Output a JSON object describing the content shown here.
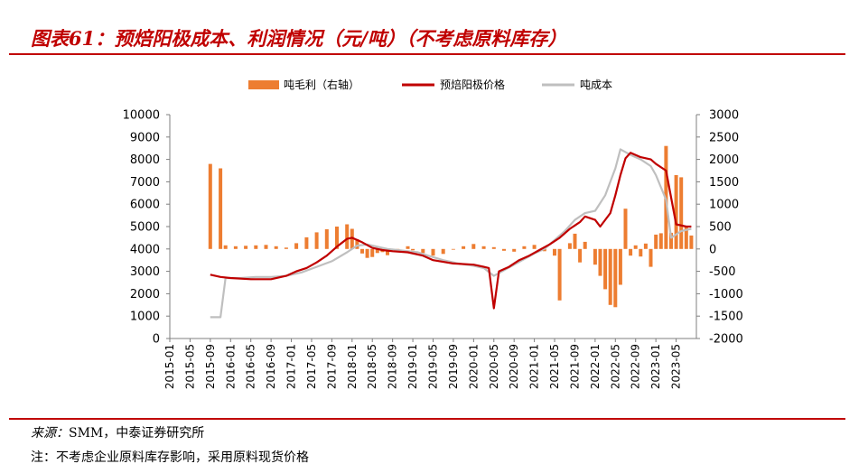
{
  "header": {
    "title": "图表61：预焙阳极成本、利润情况（元/吨）（不考虑原料库存）"
  },
  "footer": {
    "source_label": "来源：",
    "source_text": "SMM，中泰证券研究所",
    "note_label": "注：",
    "note_text": "不考虑企业原料库存影响，采用原料现货价格"
  },
  "chart_data": {
    "type": "line",
    "title": "",
    "xlabel": "",
    "ylabel": "",
    "legend_position": "top",
    "grid": false,
    "colors": {
      "profit": "#ed7d31",
      "price": "#c00000",
      "cost": "#bfbfbf"
    },
    "left_axis": {
      "min": 0,
      "max": 10000,
      "ticks": [
        0,
        1000,
        2000,
        3000,
        4000,
        5000,
        6000,
        7000,
        8000,
        9000,
        10000
      ]
    },
    "right_axis": {
      "min": -2000,
      "max": 3000,
      "ticks": [
        -2000,
        -1500,
        -1000,
        -500,
        0,
        500,
        1000,
        1500,
        2000,
        2500,
        3000
      ]
    },
    "x_ticks": [
      "2015-01",
      "2015-05",
      "2015-09",
      "2016-01",
      "2016-05",
      "2016-09",
      "2017-01",
      "2017-05",
      "2017-09",
      "2018-01",
      "2018-05",
      "2018-09",
      "2019-01",
      "2019-05",
      "2019-09",
      "2020-01",
      "2020-05",
      "2020-09",
      "2021-01",
      "2021-05",
      "2021-09",
      "2022-01",
      "2022-05",
      "2022-09",
      "2023-01",
      "2023-05"
    ],
    "series": [
      {
        "name": "吨毛利（右轴）",
        "axis": "right",
        "kind": "bar",
        "points": [
          [
            "2015-09",
            1900
          ],
          [
            "2015-11",
            1800
          ],
          [
            "2015-12",
            80
          ],
          [
            "2016-02",
            60
          ],
          [
            "2016-04",
            70
          ],
          [
            "2016-06",
            80
          ],
          [
            "2016-08",
            90
          ],
          [
            "2016-10",
            60
          ],
          [
            "2016-12",
            30
          ],
          [
            "2017-02",
            130
          ],
          [
            "2017-04",
            260
          ],
          [
            "2017-06",
            370
          ],
          [
            "2017-08",
            440
          ],
          [
            "2017-10",
            500
          ],
          [
            "2017-12",
            550
          ],
          [
            "2018-01",
            450
          ],
          [
            "2018-02",
            220
          ],
          [
            "2018-03",
            -100
          ],
          [
            "2018-04",
            -200
          ],
          [
            "2018-05",
            -180
          ],
          [
            "2018-06",
            -90
          ],
          [
            "2018-07",
            -70
          ],
          [
            "2018-08",
            -140
          ],
          [
            "2018-09",
            -60
          ],
          [
            "2018-10",
            0
          ],
          [
            "2018-12",
            60
          ],
          [
            "2019-01",
            -30
          ],
          [
            "2019-03",
            -90
          ],
          [
            "2019-05",
            -150
          ],
          [
            "2019-07",
            -110
          ],
          [
            "2019-09",
            -10
          ],
          [
            "2019-11",
            60
          ],
          [
            "2020-01",
            110
          ],
          [
            "2020-03",
            60
          ],
          [
            "2020-05",
            40
          ],
          [
            "2020-07",
            -40
          ],
          [
            "2020-09",
            -60
          ],
          [
            "2020-11",
            60
          ],
          [
            "2021-01",
            90
          ],
          [
            "2021-03",
            -50
          ],
          [
            "2021-05",
            -150
          ],
          [
            "2021-06",
            -1150
          ],
          [
            "2021-08",
            130
          ],
          [
            "2021-09",
            340
          ],
          [
            "2021-10",
            -300
          ],
          [
            "2021-11",
            160
          ],
          [
            "2022-01",
            -350
          ],
          [
            "2022-02",
            -600
          ],
          [
            "2022-03",
            -900
          ],
          [
            "2022-04",
            -1250
          ],
          [
            "2022-05",
            -1300
          ],
          [
            "2022-06",
            -800
          ],
          [
            "2022-07",
            900
          ],
          [
            "2022-08",
            -150
          ],
          [
            "2022-09",
            80
          ],
          [
            "2022-10",
            -170
          ],
          [
            "2022-11",
            120
          ],
          [
            "2022-12",
            -400
          ],
          [
            "2023-01",
            320
          ],
          [
            "2023-02",
            350
          ],
          [
            "2023-03",
            2300
          ],
          [
            "2023-04",
            360
          ],
          [
            "2023-05",
            1650
          ],
          [
            "2023-06",
            1600
          ],
          [
            "2023-07",
            500
          ],
          [
            "2023-08",
            300
          ]
        ]
      },
      {
        "name": "预焙阳极价格",
        "axis": "left",
        "kind": "line",
        "points": [
          [
            "2015-09",
            2850
          ],
          [
            "2015-11",
            2750
          ],
          [
            "2016-01",
            2700
          ],
          [
            "2016-05",
            2650
          ],
          [
            "2016-09",
            2650
          ],
          [
            "2016-12",
            2800
          ],
          [
            "2017-02",
            3000
          ],
          [
            "2017-04",
            3150
          ],
          [
            "2017-06",
            3400
          ],
          [
            "2017-08",
            3700
          ],
          [
            "2017-10",
            4100
          ],
          [
            "2017-12",
            4450
          ],
          [
            "2018-01",
            4500
          ],
          [
            "2018-03",
            4300
          ],
          [
            "2018-05",
            4050
          ],
          [
            "2018-07",
            3950
          ],
          [
            "2018-09",
            3900
          ],
          [
            "2018-12",
            3850
          ],
          [
            "2019-03",
            3700
          ],
          [
            "2019-05",
            3500
          ],
          [
            "2019-09",
            3350
          ],
          [
            "2020-01",
            3300
          ],
          [
            "2020-03",
            3200
          ],
          [
            "2020-04",
            3150
          ],
          [
            "2020-05",
            1350
          ],
          [
            "2020-06",
            3000
          ],
          [
            "2020-08",
            3200
          ],
          [
            "2020-10",
            3500
          ],
          [
            "2020-12",
            3700
          ],
          [
            "2021-02",
            3950
          ],
          [
            "2021-04",
            4200
          ],
          [
            "2021-06",
            4500
          ],
          [
            "2021-08",
            4900
          ],
          [
            "2021-10",
            5200
          ],
          [
            "2021-11",
            5450
          ],
          [
            "2022-01",
            5300
          ],
          [
            "2022-02",
            5000
          ],
          [
            "2022-04",
            5600
          ],
          [
            "2022-05",
            6400
          ],
          [
            "2022-06",
            7300
          ],
          [
            "2022-07",
            8050
          ],
          [
            "2022-08",
            8300
          ],
          [
            "2022-10",
            8100
          ],
          [
            "2022-12",
            8000
          ],
          [
            "2023-01",
            7800
          ],
          [
            "2023-03",
            7500
          ],
          [
            "2023-05",
            5100
          ],
          [
            "2023-07",
            5000
          ],
          [
            "2023-08",
            5000
          ]
        ]
      },
      {
        "name": "吨成本",
        "axis": "left",
        "kind": "line",
        "points": [
          [
            "2015-09",
            950
          ],
          [
            "2015-11",
            950
          ],
          [
            "2015-12",
            2700
          ],
          [
            "2016-03",
            2700
          ],
          [
            "2016-06",
            2750
          ],
          [
            "2016-09",
            2750
          ],
          [
            "2016-12",
            2800
          ],
          [
            "2017-03",
            2950
          ],
          [
            "2017-06",
            3200
          ],
          [
            "2017-09",
            3450
          ],
          [
            "2017-12",
            3850
          ],
          [
            "2018-02",
            4150
          ],
          [
            "2018-04",
            4200
          ],
          [
            "2018-06",
            4100
          ],
          [
            "2018-08",
            4000
          ],
          [
            "2018-10",
            3950
          ],
          [
            "2018-12",
            3900
          ],
          [
            "2019-02",
            3850
          ],
          [
            "2019-04",
            3700
          ],
          [
            "2019-07",
            3500
          ],
          [
            "2019-10",
            3350
          ],
          [
            "2020-01",
            3250
          ],
          [
            "2020-03",
            3150
          ],
          [
            "2020-05",
            2800
          ],
          [
            "2020-07",
            3050
          ],
          [
            "2020-09",
            3300
          ],
          [
            "2020-11",
            3550
          ],
          [
            "2021-01",
            3800
          ],
          [
            "2021-03",
            4000
          ],
          [
            "2021-05",
            4400
          ],
          [
            "2021-07",
            4800
          ],
          [
            "2021-09",
            5300
          ],
          [
            "2021-11",
            5600
          ],
          [
            "2022-01",
            5700
          ],
          [
            "2022-03",
            6400
          ],
          [
            "2022-05",
            7600
          ],
          [
            "2022-06",
            8450
          ],
          [
            "2022-08",
            8200
          ],
          [
            "2022-10",
            8000
          ],
          [
            "2022-12",
            7700
          ],
          [
            "2023-01",
            7300
          ],
          [
            "2023-03",
            6200
          ],
          [
            "2023-04",
            4500
          ],
          [
            "2023-06",
            4800
          ],
          [
            "2023-08",
            4900
          ]
        ]
      }
    ]
  }
}
